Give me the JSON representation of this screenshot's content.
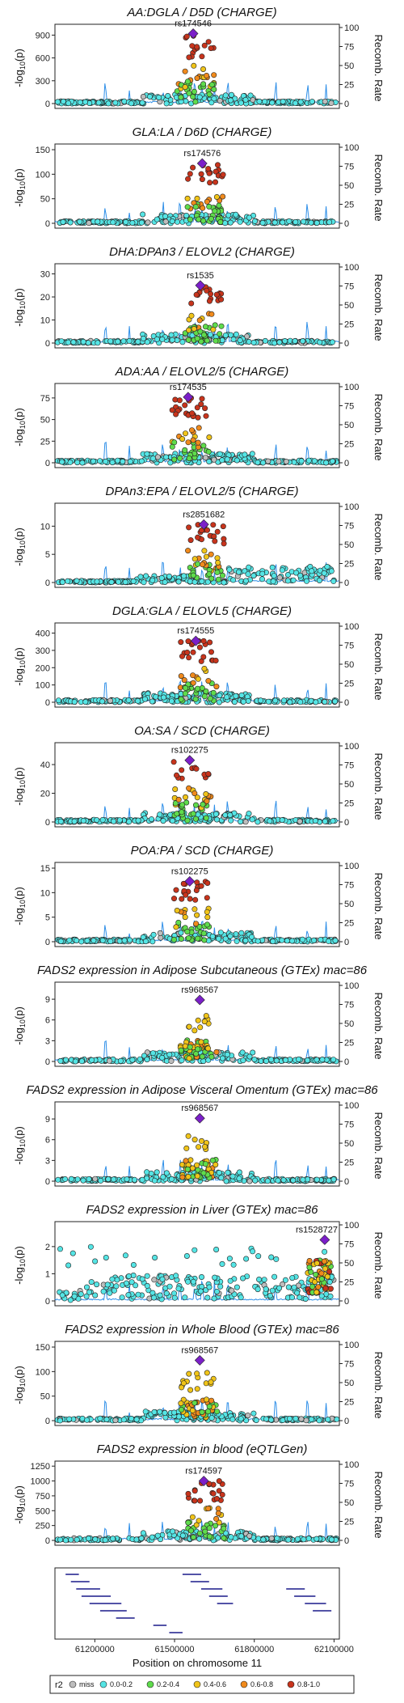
{
  "chart_data": {
    "type": "scatter",
    "xlabel": "Position on chromosome 11",
    "xticks": [
      61200000,
      61500000,
      61800000,
      62100000
    ],
    "xlim": [
      61050000,
      62120000
    ],
    "ylabel_left": "-log10(p)",
    "ylabel_right": "Recomb. Rate",
    "right_ticks": [
      0,
      25,
      50,
      75,
      100
    ],
    "legend": {
      "title": "r2",
      "entries": [
        {
          "label": "miss",
          "color": "#bdbdbd"
        },
        {
          "label": "0.0-0.2",
          "color": "#55e5e5"
        },
        {
          "label": "0.2-0.4",
          "color": "#5fdc4c"
        },
        {
          "label": "0.4-0.6",
          "color": "#f0c419"
        },
        {
          "label": "0.6-0.8",
          "color": "#f08a1c"
        },
        {
          "label": "0.8-1.0",
          "color": "#c8341c"
        }
      ],
      "lead_color": "#7b1fc8",
      "placement": "bottom"
    },
    "panels": [
      {
        "title": "AA:DGLA / D5D (CHARGE)",
        "lead": "rs174546",
        "lead_x": 61570000,
        "lead_y": 920,
        "ymax": 1000,
        "yticks": [
          0,
          300,
          600,
          900
        ],
        "profile": "charge"
      },
      {
        "title": "GLA:LA / D6D (CHARGE)",
        "lead": "rs174576",
        "lead_x": 61604000,
        "lead_y": 122,
        "ymax": 155,
        "yticks": [
          0,
          50,
          100,
          150
        ],
        "profile": "charge"
      },
      {
        "title": "DHA:DPAn3 / ELOVL2 (CHARGE)",
        "lead": "rs1535",
        "lead_x": 61597000,
        "lead_y": 25,
        "ymax": 33,
        "yticks": [
          0,
          10,
          20,
          30
        ],
        "profile": "charge"
      },
      {
        "title": "ADA:AA / ELOVL2/5 (CHARGE)",
        "lead": "rs174535",
        "lead_x": 61551000,
        "lead_y": 76,
        "ymax": 88,
        "yticks": [
          0,
          25,
          50,
          75
        ],
        "profile": "charge"
      },
      {
        "title": "DPAn3:EPA / ELOVL2/5 (CHARGE)",
        "lead": "rs2851682",
        "lead_x": 61610000,
        "lead_y": 10.3,
        "ymax": 13.5,
        "yticks": [
          0,
          5,
          10
        ],
        "profile": "dpa"
      },
      {
        "title": "DGLA:GLA / ELOVL5 (CHARGE)",
        "lead": "rs174555",
        "lead_x": 61580000,
        "lead_y": 355,
        "ymax": 440,
        "yticks": [
          0,
          100,
          200,
          300,
          400
        ],
        "profile": "charge"
      },
      {
        "title": "OA:SA / SCD (CHARGE)",
        "lead": "rs102275",
        "lead_x": 61557000,
        "lead_y": 43,
        "ymax": 53,
        "yticks": [
          0,
          20,
          40
        ],
        "profile": "charge"
      },
      {
        "title": "POA:PA / SCD (CHARGE)",
        "lead": "rs102275",
        "lead_x": 61557000,
        "lead_y": 12.3,
        "ymax": 15.5,
        "yticks": [
          0,
          5,
          10,
          15
        ],
        "profile": "charge"
      },
      {
        "title": "FADS2 expression in Adipose Subcutaneous (GTEx) mac=86",
        "lead": "rs968567",
        "lead_x": 61595000,
        "lead_y": 8.9,
        "ymax": 11,
        "yticks": [
          0,
          3,
          6,
          9
        ],
        "profile": "gtex"
      },
      {
        "title": "FADS2 expression in Adipose Visceral Omentum (GTEx) mac=86",
        "lead": "rs968567",
        "lead_x": 61595000,
        "lead_y": 9.1,
        "ymax": 11,
        "yticks": [
          0,
          3,
          6,
          9
        ],
        "profile": "gtex"
      },
      {
        "title": "FADS2 expression in Liver (GTEx) mac=86",
        "lead": "rs1528727",
        "lead_x": 62065000,
        "lead_y": 2.25,
        "ymax": 2.8,
        "yticks": [
          0,
          1,
          2
        ],
        "profile": "liver"
      },
      {
        "title": "FADS2 expression in Whole Blood (GTEx) mac=86",
        "lead": "rs968567",
        "lead_x": 61595000,
        "lead_y": 123,
        "ymax": 155,
        "yticks": [
          0,
          50,
          100,
          150
        ],
        "profile": "blood"
      },
      {
        "title": "FADS2 expression in blood (eQTLGen)",
        "lead": "rs174597",
        "lead_x": 61610000,
        "lead_y": 1000,
        "ymax": 1280,
        "yticks": [
          0,
          250,
          500,
          750,
          1000,
          1250
        ],
        "profile": "eqtl"
      }
    ]
  }
}
